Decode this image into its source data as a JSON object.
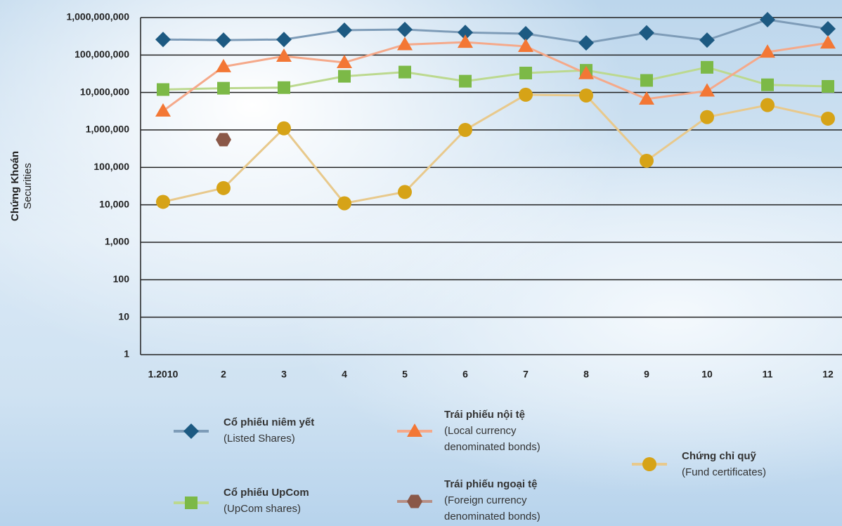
{
  "chart_data": {
    "type": "line",
    "y_label": "Chứng Khoán",
    "y_label_en": "Securities",
    "log_scale": true,
    "grid": true,
    "categories": [
      "1.2010",
      "2",
      "3",
      "4",
      "5",
      "6",
      "7",
      "8",
      "9",
      "10",
      "11",
      "12"
    ],
    "ylim": [
      1,
      1000000000
    ],
    "yticks": [
      1,
      10,
      100,
      {
        "value": 1000,
        "label": "1,000"
      },
      {
        "value": 10000,
        "label": "10,000"
      },
      {
        "value": 100000,
        "label": "100,000"
      },
      {
        "value": 1000000,
        "label": "1,000,000"
      },
      {
        "value": 10000000,
        "label": "10,000,000"
      },
      {
        "value": 100000000,
        "label": "100,000,000"
      },
      {
        "value": 1000000000,
        "label": "1,000,000,000"
      }
    ],
    "series": [
      {
        "name": "Cổ phiếu niêm yết",
        "label_lines": [
          "(Listed Shares)"
        ],
        "marker": "diamond",
        "color": "#1d5a82",
        "line_color": "#7e9cb8",
        "values": [
          260000000,
          250000000,
          260000000,
          460000000,
          480000000,
          400000000,
          370000000,
          210000000,
          390000000,
          250000000,
          880000000,
          500000000
        ]
      },
      {
        "name": "Cổ phiếu UpCom",
        "label_lines": [
          "(UpCom shares)"
        ],
        "marker": "square",
        "color": "#7cb947",
        "line_color": "#bcd98f",
        "values": [
          12000000,
          13000000,
          13500000,
          27000000,
          35000000,
          20000000,
          33000000,
          39000000,
          21000000,
          47000000,
          16000000,
          14500000
        ]
      },
      {
        "name": "Trái phiếu nội tệ",
        "label_lines": [
          "(Local currency",
          "denominated bonds)"
        ],
        "marker": "triangle",
        "color": "#f37735",
        "line_color": "#f5a98a",
        "values": [
          3200000,
          49000000,
          93000000,
          63000000,
          190000000,
          220000000,
          170000000,
          32000000,
          6700000,
          11000000,
          120000000,
          210000000
        ]
      },
      {
        "name": "Trái phiếu ngoại tệ",
        "label_lines": [
          "(Foreign currency",
          "denominated bonds)"
        ],
        "marker": "hexagon",
        "color": "#8a5848",
        "line_color": "#b78f85",
        "values": [
          null,
          550000,
          null,
          null,
          null,
          null,
          null,
          null,
          null,
          null,
          null,
          null
        ]
      },
      {
        "name": "Chứng chỉ quỹ",
        "label_lines": [
          "(Fund certificates)"
        ],
        "marker": "circle",
        "color": "#d6a317",
        "line_color": "#e8c98c",
        "values": [
          12000,
          28000,
          1100000,
          11000,
          22000,
          1000000,
          8700000,
          8300000,
          150000,
          2200000,
          4600000,
          2000000
        ]
      }
    ]
  }
}
